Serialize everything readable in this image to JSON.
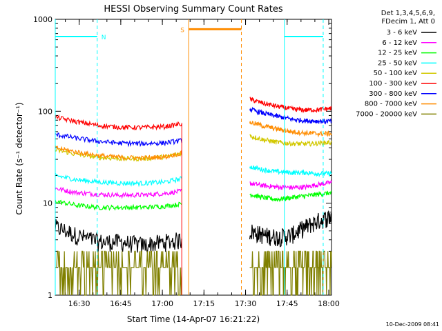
{
  "chart_data": {
    "type": "line",
    "title": "HESSI Observing Summary Count Rates",
    "xlabel": "Start Time (14-Apr-07 16:21:22)",
    "ylabel": "Count Rate (s⁻¹ detector⁻¹)",
    "yscale": "log",
    "xlim": [
      "16:21:22",
      "18:01:00"
    ],
    "ylim": [
      1,
      1000
    ],
    "x_ticks": [
      "16:30",
      "16:45",
      "17:00",
      "17:15",
      "17:30",
      "17:45",
      "18:00"
    ],
    "y_ticks": [
      "1",
      "10",
      "100",
      "1000"
    ],
    "legend_header": [
      "Det 1,3,4,5,6,9,",
      "FDecim 1, Att 0"
    ],
    "legend_position": "right",
    "footer": "10-Dec-2009 08:41",
    "series": [
      {
        "name": "3 - 6 keV",
        "color": "#000000",
        "seg1": [
          5.5,
          4.5,
          3.8,
          3.8,
          3.5,
          3.8,
          4.0
        ],
        "seg2": [
          5.0,
          4.5,
          4.3,
          4.5,
          5.5,
          6.5,
          7.2
        ]
      },
      {
        "name": "6 - 12 keV",
        "color": "#ff00ff",
        "seg1": [
          14.5,
          13.0,
          12.5,
          12.2,
          12.3,
          12.8,
          13.5
        ],
        "seg2": [
          16.5,
          15.5,
          15.0,
          14.8,
          15.0,
          16.0,
          16.8
        ]
      },
      {
        "name": "12 - 25 keV",
        "color": "#00ff00",
        "seg1": [
          10.5,
          9.5,
          9.0,
          9.0,
          9.0,
          9.3,
          9.8
        ],
        "seg2": [
          12.5,
          11.5,
          11.0,
          11.5,
          12.0,
          12.5,
          13.0
        ]
      },
      {
        "name": "25 - 50 keV",
        "color": "#00ffff",
        "seg1": [
          20.0,
          18.0,
          17.0,
          16.5,
          16.5,
          17.0,
          18.5
        ],
        "seg2": [
          25.0,
          23.0,
          22.0,
          21.5,
          21.5,
          21.0,
          21.0
        ]
      },
      {
        "name": "50 - 100 keV",
        "color": "#d2c800",
        "seg1": [
          38.0,
          34.0,
          31.5,
          30.5,
          30.5,
          32.0,
          35.0
        ],
        "seg2": [
          54.0,
          49.0,
          46.0,
          44.5,
          44.0,
          45.0,
          46.0
        ]
      },
      {
        "name": "100 - 300 keV",
        "color": "#ff0000",
        "seg1": [
          86.0,
          77.0,
          70.0,
          67.0,
          66.5,
          68.0,
          73.0
        ],
        "seg2": [
          135.0,
          122.0,
          113.0,
          106.0,
          103.0,
          104.0,
          108.0
        ]
      },
      {
        "name": "300 - 800 keV",
        "color": "#0000ff",
        "seg1": [
          56.0,
          51.0,
          47.0,
          45.0,
          44.5,
          45.5,
          48.0
        ],
        "seg2": [
          105.0,
          95.0,
          88.0,
          82.0,
          79.0,
          78.0,
          78.0
        ]
      },
      {
        "name": "800 - 7000 keV",
        "color": "#ff8c00",
        "seg1": [
          40.0,
          36.0,
          33.0,
          31.5,
          31.0,
          32.0,
          35.0
        ],
        "seg2": [
          76.0,
          69.0,
          64.0,
          60.0,
          58.0,
          57.0,
          57.0
        ]
      },
      {
        "name": "7000 - 20000 keV",
        "color": "#808000",
        "seg1": [
          2.0,
          2.0,
          2.0,
          2.0,
          2.0,
          2.0,
          2.0
        ],
        "seg2": [
          2.0,
          2.0,
          2.0,
          2.0,
          2.0,
          2.0,
          2.0
        ]
      }
    ],
    "segments_time": {
      "seg1": [
        "16:21:22",
        "17:07:00"
      ],
      "seg2": [
        "17:31:30",
        "18:01:00"
      ],
      "sample_times_seg1": [
        "16:21:22",
        "16:29:00",
        "16:37:00",
        "16:45:00",
        "16:53:00",
        "17:01:00",
        "17:07:00"
      ],
      "sample_times_seg2": [
        "17:31:30",
        "17:36:30",
        "17:41:30",
        "17:46:30",
        "17:51:30",
        "17:56:30",
        "18:01:00"
      ]
    },
    "markers": [
      {
        "label": "N",
        "color": "#00ffff",
        "value": 650,
        "from": "16:21:22",
        "to": "16:36:30",
        "dashed_end": "16:36:30",
        "solid_start": "16:21:22"
      },
      {
        "label": "",
        "color": "#00ffff",
        "value": 650,
        "from": "17:44:00",
        "to": "17:58:00",
        "dashed_end": "17:58:00",
        "solid_start": "17:44:00"
      },
      {
        "label": "S",
        "color": "#ff8c00",
        "value": 780,
        "from": "17:09:30",
        "to": "17:28:30",
        "dashed_end": "17:28:30",
        "solid_start": "17:09:30"
      }
    ]
  }
}
